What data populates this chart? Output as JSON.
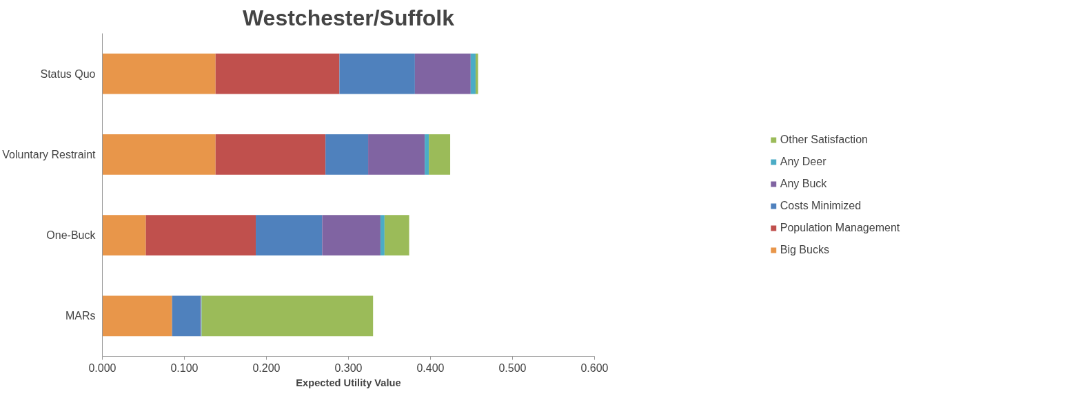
{
  "chart_data": {
    "type": "bar",
    "orientation": "horizontal",
    "stacked": true,
    "title": "Westchester/Suffolk",
    "xlabel": "Expected Utility Value",
    "categories": [
      "Status Quo",
      "Voluntary Restraint",
      "One-Buck",
      "MARs"
    ],
    "series": [
      {
        "name": "Big Bucks",
        "color": "#e8964a",
        "values": [
          0.138,
          0.138,
          0.053,
          0.085
        ]
      },
      {
        "name": "Population Management",
        "color": "#c0504d",
        "values": [
          0.151,
          0.134,
          0.134,
          0
        ]
      },
      {
        "name": "Costs Minimized",
        "color": "#4f81bd",
        "values": [
          0.092,
          0.052,
          0.081,
          0.034
        ]
      },
      {
        "name": "Any Buck",
        "color": "#8064a2",
        "values": [
          0.068,
          0.069,
          0.071,
          0.001
        ]
      },
      {
        "name": "Any Deer",
        "color": "#4bacc6",
        "values": [
          0.006,
          0.005,
          0.005,
          0.001
        ]
      },
      {
        "name": "Other Satisfaction",
        "color": "#9bbb59",
        "values": [
          0.003,
          0.026,
          0.03,
          0.209
        ]
      }
    ],
    "xlim": [
      0,
      0.6
    ],
    "xticks": [
      {
        "value": 0,
        "label": "0.000"
      },
      {
        "value": 0.1,
        "label": "0.100"
      },
      {
        "value": 0.2,
        "label": "0.200"
      },
      {
        "value": 0.3,
        "label": "0.300"
      },
      {
        "value": 0.4,
        "label": "0.400"
      },
      {
        "value": 0.5,
        "label": "0.500"
      },
      {
        "value": 0.6,
        "label": "0.600"
      }
    ],
    "grid": false,
    "legend": "right"
  }
}
